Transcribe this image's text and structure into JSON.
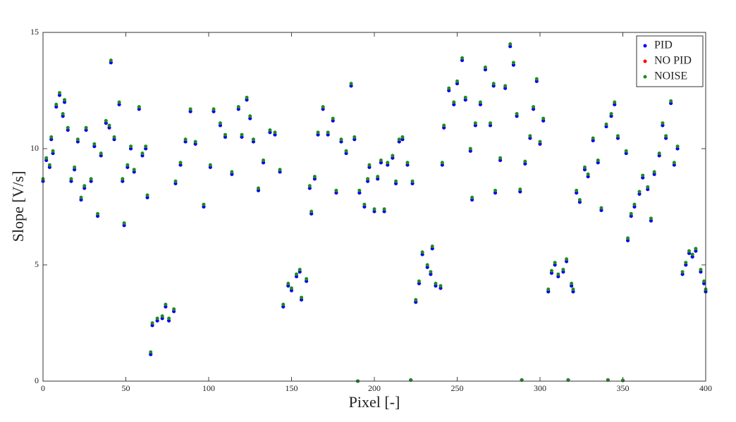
{
  "chart_data": {
    "type": "scatter",
    "xlabel": "Pixel [-]",
    "ylabel": "Slope [V/s]",
    "xlim": [
      0,
      400
    ],
    "ylim": [
      0,
      15
    ],
    "xticks": [
      0,
      50,
      100,
      150,
      200,
      250,
      300,
      350,
      400
    ],
    "yticks": [
      0,
      5,
      10,
      15
    ],
    "legend": "upper right",
    "x": [
      0,
      2,
      4,
      5,
      6,
      8,
      10,
      12,
      13,
      15,
      17,
      19,
      21,
      23,
      25,
      26,
      29,
      31,
      33,
      35,
      38,
      40,
      41,
      43,
      46,
      48,
      49,
      51,
      53,
      55,
      58,
      60,
      62,
      63,
      65,
      66,
      69,
      72,
      74,
      76,
      79,
      80,
      83,
      86,
      89,
      92,
      97,
      101,
      103,
      107,
      110,
      114,
      118,
      120,
      123,
      125,
      127,
      130,
      133,
      137,
      140,
      143,
      145,
      148,
      150,
      153,
      155,
      156,
      159,
      161,
      162,
      164,
      166,
      169,
      172,
      175,
      177,
      180,
      183,
      186,
      188,
      190,
      191,
      194,
      196,
      197,
      200,
      202,
      204,
      206,
      208,
      211,
      213,
      215,
      217,
      220,
      222,
      223,
      225,
      227,
      229,
      232,
      234,
      235,
      237,
      240,
      241,
      242,
      245,
      248,
      250,
      253,
      255,
      258,
      259,
      261,
      264,
      267,
      270,
      272,
      273,
      276,
      279,
      282,
      284,
      286,
      288,
      289,
      291,
      294,
      296,
      298,
      300,
      302,
      305,
      307,
      309,
      311,
      314,
      316,
      317,
      319,
      320,
      322,
      324,
      327,
      329,
      332,
      335,
      337,
      340,
      341,
      343,
      345,
      347,
      350,
      352,
      353,
      355,
      357,
      360,
      362,
      365,
      367,
      369,
      372,
      374,
      376,
      379,
      381,
      383,
      386,
      388,
      390,
      392,
      394,
      397,
      399,
      400
    ],
    "series": [
      {
        "name": "PID",
        "color": "#0000ff",
        "values": [
          8.6,
          9.5,
          9.2,
          10.4,
          9.8,
          11.8,
          12.3,
          11.4,
          12.0,
          10.8,
          8.6,
          9.1,
          10.3,
          7.8,
          8.3,
          10.8,
          8.6,
          10.1,
          7.1,
          9.7,
          11.1,
          10.9,
          13.7,
          10.4,
          11.9,
          8.6,
          6.7,
          9.2,
          10.0,
          9.0,
          11.7,
          9.7,
          10.0,
          7.9,
          1.15,
          2.4,
          2.6,
          2.7,
          3.2,
          2.6,
          3.0,
          8.5,
          9.3,
          10.3,
          11.6,
          10.2,
          7.5,
          9.2,
          11.6,
          11.0,
          10.5,
          8.9,
          11.7,
          10.5,
          12.1,
          11.3,
          10.3,
          8.2,
          9.4,
          10.7,
          10.6,
          9.0,
          3.2,
          4.1,
          3.9,
          4.5,
          4.7,
          3.5,
          4.3,
          8.3,
          7.2,
          8.7,
          10.6,
          11.7,
          10.6,
          11.2,
          8.1,
          10.3,
          9.8,
          12.7,
          10.4,
          0,
          8.1,
          7.5,
          8.6,
          9.2,
          7.3,
          8.7,
          9.4,
          7.3,
          9.3,
          9.6,
          8.5,
          10.3,
          10.4,
          9.3,
          0.05,
          8.5,
          3.4,
          4.2,
          5.45,
          4.9,
          4.6,
          5.7,
          4.1,
          4.0,
          9.3,
          10.9,
          12.5,
          11.9,
          12.8,
          13.8,
          12.1,
          9.9,
          7.8,
          11.0,
          11.9,
          13.4,
          11.0,
          12.7,
          8.1,
          9.5,
          12.6,
          14.4,
          13.6,
          11.4,
          8.15,
          0.05,
          9.35,
          10.45,
          11.7,
          12.9,
          10.2,
          11.2,
          3.85,
          4.65,
          5.0,
          4.5,
          4.7,
          5.15,
          0.05,
          4.1,
          3.85,
          8.1,
          7.7,
          9.1,
          8.8,
          10.35,
          9.4,
          7.35,
          10.95,
          0.05,
          11.4,
          11.9,
          10.45,
          0.03,
          9.8,
          6.05,
          7.1,
          7.5,
          8.05,
          8.75,
          8.25,
          6.9,
          8.9,
          9.7,
          11.0,
          10.45,
          11.95,
          9.3,
          10.0,
          4.6,
          5.0,
          5.5,
          5.35,
          5.6,
          4.7,
          4.2,
          3.85
        ]
      },
      {
        "name": "NO PID",
        "color": "#ff0000",
        "values": [
          8.6,
          9.5,
          9.2,
          10.4,
          9.8,
          11.8,
          12.3,
          11.4,
          12.0,
          10.8,
          8.6,
          9.1,
          10.3,
          7.8,
          8.3,
          10.8,
          8.6,
          10.1,
          7.1,
          9.7,
          11.1,
          10.9,
          13.7,
          10.4,
          11.9,
          8.6,
          6.7,
          9.2,
          10.0,
          9.0,
          11.7,
          9.7,
          10.0,
          7.9,
          1.15,
          2.4,
          2.6,
          2.7,
          3.2,
          2.6,
          3.0,
          8.5,
          9.3,
          10.3,
          11.6,
          10.2,
          7.5,
          9.2,
          11.6,
          11.0,
          10.5,
          8.9,
          11.7,
          10.5,
          12.1,
          11.3,
          10.3,
          8.2,
          9.4,
          10.7,
          10.6,
          9.0,
          3.2,
          4.1,
          3.9,
          4.5,
          4.7,
          3.5,
          4.3,
          8.3,
          7.2,
          8.7,
          10.6,
          11.7,
          10.6,
          11.2,
          8.1,
          10.3,
          9.8,
          12.7,
          10.4,
          0,
          8.1,
          7.5,
          8.6,
          9.2,
          7.3,
          8.7,
          9.4,
          7.3,
          9.3,
          9.6,
          8.5,
          10.3,
          10.4,
          9.3,
          0.05,
          8.5,
          3.4,
          4.2,
          5.45,
          4.9,
          4.6,
          5.7,
          4.1,
          4.0,
          9.3,
          10.9,
          12.5,
          11.9,
          12.8,
          13.8,
          12.1,
          9.9,
          7.8,
          11.0,
          11.9,
          13.4,
          11.0,
          12.7,
          8.1,
          9.5,
          12.6,
          14.4,
          13.6,
          11.4,
          8.15,
          0.05,
          9.35,
          10.45,
          11.7,
          12.9,
          10.2,
          11.2,
          3.85,
          4.65,
          5.0,
          4.5,
          4.7,
          5.15,
          0.05,
          4.1,
          3.85,
          8.1,
          7.7,
          9.1,
          8.8,
          10.35,
          9.4,
          7.35,
          10.95,
          0.05,
          11.4,
          11.9,
          10.45,
          0.03,
          9.8,
          6.05,
          7.1,
          7.5,
          8.05,
          8.75,
          8.25,
          6.9,
          8.9,
          9.7,
          11.0,
          10.45,
          11.95,
          9.3,
          10.0,
          4.6,
          5.0,
          5.5,
          5.35,
          5.6,
          4.7,
          4.2,
          3.85
        ]
      },
      {
        "name": "NOISE",
        "color": "#1e8c1e",
        "values": [
          8.7,
          9.6,
          9.3,
          10.5,
          9.9,
          11.9,
          12.4,
          11.5,
          12.1,
          10.9,
          8.7,
          9.2,
          10.4,
          7.9,
          8.4,
          10.9,
          8.7,
          10.2,
          7.2,
          9.8,
          11.2,
          11.0,
          13.8,
          10.5,
          12.0,
          8.7,
          6.8,
          9.3,
          10.1,
          9.1,
          11.8,
          9.8,
          10.1,
          8.0,
          1.25,
          2.5,
          2.7,
          2.8,
          3.3,
          2.7,
          3.1,
          8.6,
          9.4,
          10.4,
          11.7,
          10.3,
          7.6,
          9.3,
          11.7,
          11.1,
          10.6,
          9.0,
          11.8,
          10.6,
          12.2,
          11.4,
          10.4,
          8.3,
          9.5,
          10.8,
          10.7,
          9.1,
          3.3,
          4.2,
          4.0,
          4.6,
          4.8,
          3.6,
          4.4,
          8.4,
          7.3,
          8.8,
          10.7,
          11.8,
          10.7,
          11.3,
          8.2,
          10.4,
          9.9,
          12.8,
          10.5,
          0,
          8.2,
          7.6,
          8.7,
          9.3,
          7.4,
          8.8,
          9.5,
          7.4,
          9.4,
          9.7,
          8.6,
          10.4,
          10.5,
          9.4,
          0.05,
          8.6,
          3.5,
          4.3,
          5.55,
          5.0,
          4.7,
          5.8,
          4.2,
          4.1,
          9.4,
          11.0,
          12.6,
          12.0,
          12.9,
          13.9,
          12.2,
          10.0,
          7.9,
          11.1,
          12.0,
          13.5,
          11.1,
          12.8,
          8.2,
          9.6,
          12.7,
          14.5,
          13.7,
          11.5,
          8.25,
          0.05,
          9.45,
          10.55,
          11.8,
          13.0,
          10.3,
          11.3,
          3.95,
          4.75,
          5.1,
          4.6,
          4.8,
          5.25,
          0.05,
          4.2,
          3.95,
          8.2,
          7.8,
          9.2,
          8.9,
          10.45,
          9.5,
          7.45,
          11.05,
          0.05,
          11.5,
          12.0,
          10.55,
          0.03,
          9.9,
          6.15,
          7.2,
          7.6,
          8.15,
          8.85,
          8.35,
          7.0,
          9.0,
          9.8,
          11.1,
          10.55,
          12.05,
          9.4,
          10.1,
          4.7,
          5.1,
          5.6,
          5.45,
          5.7,
          4.8,
          4.3,
          3.95
        ]
      }
    ]
  }
}
